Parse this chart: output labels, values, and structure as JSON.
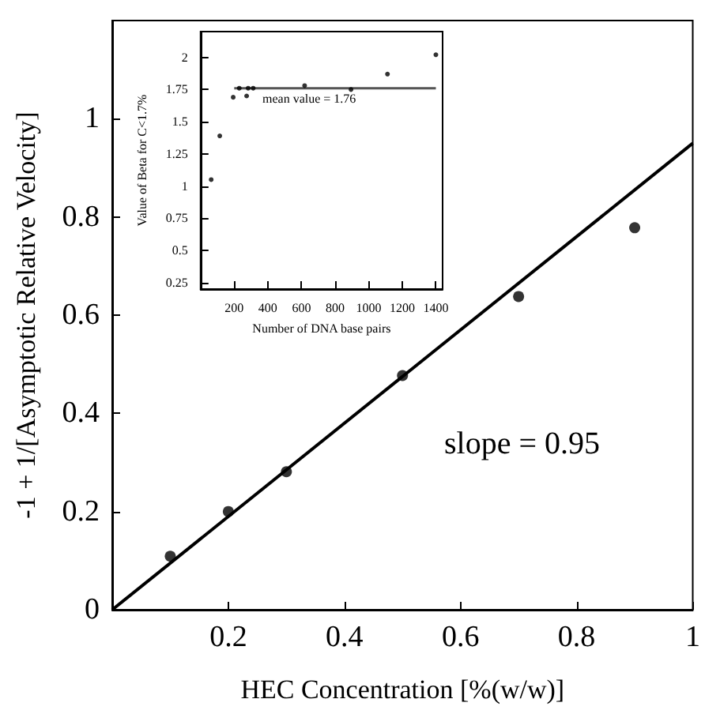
{
  "chart_data": [
    {
      "type": "scatter",
      "xlabel": "HEC Concentration [%(w/w)]",
      "ylabel": "-1 + 1/[Asymptotic Relative Velocity]",
      "xlim": [
        0,
        1
      ],
      "ylim": [
        0,
        1.2
      ],
      "xticks": [
        {
          "value": 0,
          "label": null
        },
        0.2,
        0.4,
        0.6,
        0.8,
        1
      ],
      "yticks": [
        0,
        0.2,
        0.4,
        0.6,
        0.8,
        1
      ],
      "grid": false,
      "annotations": [
        "slope = 0.95"
      ],
      "series": [
        {
          "marker": "circle",
          "color": "#000000",
          "x": [
            0.1,
            0.2,
            0.3,
            0.5,
            0.7,
            0.9
          ],
          "values": [
            0.109,
            0.2,
            0.281,
            0.477,
            0.638,
            0.778
          ]
        },
        {
          "type": "line",
          "marker": "none",
          "line_style": "solid",
          "color": "#000000",
          "x": [
            0,
            1
          ],
          "values": [
            0,
            0.95
          ]
        }
      ]
    },
    {
      "type": "scatter",
      "xlabel": "Number of DNA base pairs",
      "ylabel": "Value of Beta for C<1.7%",
      "xlim": [
        0,
        1440
      ],
      "ylim": [
        0.2,
        2.2
      ],
      "xticks": [
        200,
        400,
        600,
        800,
        1000,
        1200,
        1400
      ],
      "yticks": [
        0.25,
        0.5,
        0.75,
        1,
        1.25,
        1.5,
        1.75,
        2
      ],
      "grid": false,
      "annotations": [
        "mean value = 1.76"
      ],
      "series": [
        {
          "marker": "circle",
          "color": "#000000",
          "x": [
            63,
            114,
            194,
            230,
            274,
            283,
            313,
            619,
            895,
            1112,
            1400
          ],
          "values": [
            1.05,
            1.39,
            1.69,
            1.76,
            1.7,
            1.76,
            1.76,
            1.78,
            1.75,
            1.87,
            2.02
          ]
        },
        {
          "type": "line",
          "marker": "none",
          "line_style": "solid",
          "color": "#555555",
          "x": [
            200,
            1400
          ],
          "values": [
            1.76,
            1.76
          ]
        }
      ]
    }
  ]
}
